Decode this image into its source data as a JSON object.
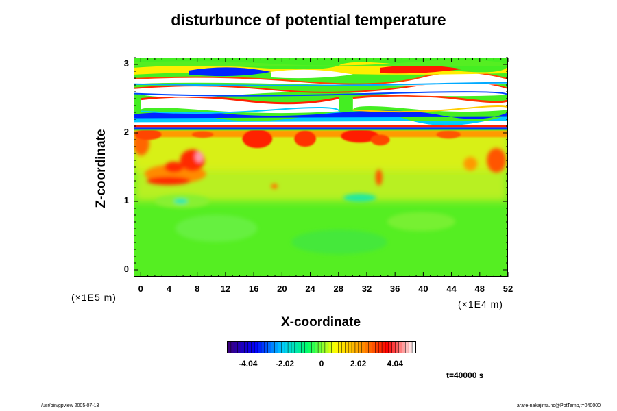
{
  "chart_data": {
    "type": "heatmap",
    "title": "disturbunce of potential temperature",
    "xlabel": "X-coordinate",
    "ylabel": "Z-coordinate",
    "x_scale_label": "(×1E4 m)",
    "y_scale_label": "(×1E5 m)",
    "xlim": [
      -1,
      52
    ],
    "ylim": [
      -0.1,
      3.1
    ],
    "x_ticks": [
      "0",
      "4",
      "8",
      "12",
      "16",
      "20",
      "24",
      "28",
      "32",
      "36",
      "40",
      "44",
      "48",
      "52"
    ],
    "y_ticks": [
      "0",
      "1",
      "2",
      "3"
    ],
    "colorbar": {
      "range": [
        -5.2,
        5.2
      ],
      "ticks": [
        "-4.04",
        "-2.02",
        "0",
        "2.02",
        "4.04"
      ],
      "tick_values": [
        -4.04,
        -2.02,
        0,
        2.02,
        4.04
      ],
      "colors": [
        "#3a0080",
        "#0000ff",
        "#00ccff",
        "#00ff66",
        "#ffff00",
        "#ff9900",
        "#ff0000",
        "#ffffff"
      ]
    },
    "annotation": "t=40000 s",
    "field_description_regions": [
      {
        "z_range": [
          0,
          1.1
        ],
        "level": "near 0 (green)"
      },
      {
        "z_range": [
          1.1,
          2.0
        ],
        "level": "slightly positive (yellow-green), warm red blobs near x=3-9"
      },
      {
        "z_range": [
          2.0,
          3.0
        ],
        "level": "strongly alternating bands, out of range (white) and blue/red"
      }
    ]
  },
  "footer": {
    "left": "/usr/bin/gpview 2005-07-13",
    "right": "arare-nakajima.nc@PotTemp,t=040000"
  }
}
